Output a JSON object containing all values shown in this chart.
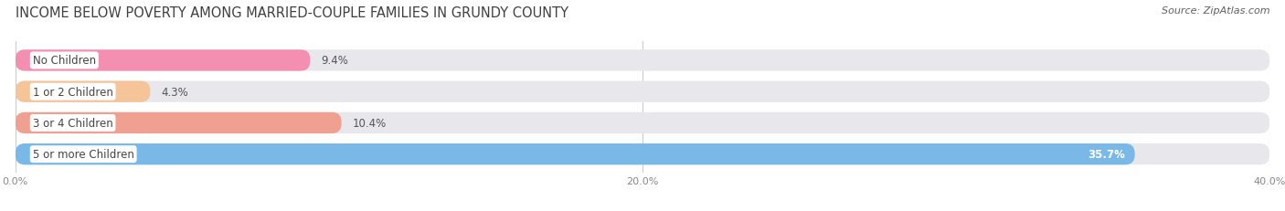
{
  "title": "INCOME BELOW POVERTY AMONG MARRIED-COUPLE FAMILIES IN GRUNDY COUNTY",
  "source": "Source: ZipAtlas.com",
  "categories": [
    "No Children",
    "1 or 2 Children",
    "3 or 4 Children",
    "5 or more Children"
  ],
  "values": [
    9.4,
    4.3,
    10.4,
    35.7
  ],
  "bar_colors": [
    "#f48fb1",
    "#f5c499",
    "#f0a090",
    "#7ab8e8"
  ],
  "xlim": [
    0,
    40
  ],
  "xticks": [
    0,
    20,
    40
  ],
  "xtick_labels": [
    "0.0%",
    "20.0%",
    "40.0%"
  ],
  "background_color": "#ffffff",
  "bar_bg_color": "#e8e8ec",
  "bar_height": 0.68,
  "title_fontsize": 10.5,
  "source_fontsize": 8,
  "label_fontsize": 8.5,
  "value_fontsize": 8.5,
  "title_color": "#404040",
  "source_color": "#606060",
  "label_text_color": "#444444",
  "value_text_color_default": "#555555",
  "value_text_color_last": "#ffffff"
}
